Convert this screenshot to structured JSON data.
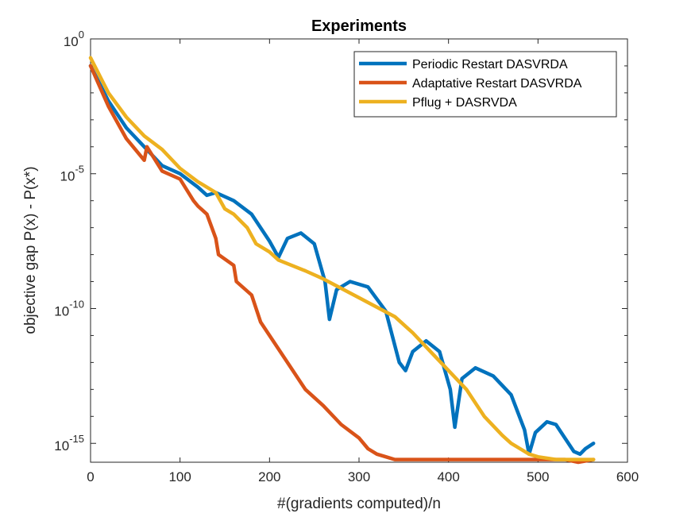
{
  "chart_data": {
    "type": "line",
    "title": "Experiments",
    "xlabel": "#(gradients computed)/n",
    "ylabel": "objective gap P(x) - P(x*)",
    "xlim": [
      0,
      600
    ],
    "ylim_exponent": [
      -15.7,
      0
    ],
    "yscale": "log",
    "x_ticks": [
      "0",
      "100",
      "200",
      "300",
      "400",
      "500",
      "600"
    ],
    "x_tick_values": [
      0,
      100,
      200,
      300,
      400,
      500,
      600
    ],
    "y_ticks": [
      {
        "value": 0,
        "base": "10",
        "exp": "0"
      },
      {
        "value": -5,
        "base": "10",
        "exp": "-5"
      },
      {
        "value": -10,
        "base": "10",
        "exp": "-10"
      },
      {
        "value": -15,
        "base": "10",
        "exp": "-15"
      }
    ],
    "legend_position": "top-right",
    "grid": false,
    "series": [
      {
        "name": "Periodic Restart DASVRDA",
        "color": "#0072BD",
        "x": [
          0,
          20,
          40,
          60,
          80,
          100,
          120,
          130,
          140,
          160,
          180,
          200,
          210,
          220,
          235,
          250,
          262,
          267,
          275,
          290,
          310,
          330,
          345,
          352,
          360,
          375,
          390,
          402,
          407,
          415,
          430,
          450,
          470,
          485,
          490,
          497,
          510,
          520,
          530,
          540,
          547,
          553,
          562
        ],
        "y_log10": [
          -1.0,
          -2.3,
          -3.3,
          -4.0,
          -4.7,
          -5.0,
          -5.5,
          -5.8,
          -5.7,
          -6.0,
          -6.5,
          -7.5,
          -8.1,
          -7.4,
          -7.2,
          -7.6,
          -9.0,
          -10.4,
          -9.3,
          -9.0,
          -9.2,
          -10.1,
          -12.0,
          -12.3,
          -11.6,
          -11.2,
          -11.6,
          -13.0,
          -14.4,
          -12.6,
          -12.2,
          -12.5,
          -13.2,
          -14.5,
          -15.4,
          -14.6,
          -14.2,
          -14.3,
          -14.8,
          -15.3,
          -15.4,
          -15.2,
          -15.0
        ]
      },
      {
        "name": "Adaptative Restart DASVRDA",
        "color": "#D95319",
        "x": [
          0,
          20,
          40,
          60,
          63,
          80,
          100,
          115,
          120,
          130,
          140,
          143,
          160,
          163,
          180,
          190,
          200,
          220,
          240,
          260,
          280,
          300,
          310,
          320,
          330,
          340,
          360,
          400,
          450,
          500,
          530,
          545,
          562
        ],
        "y_log10": [
          -1.0,
          -2.5,
          -3.7,
          -4.5,
          -4.0,
          -4.9,
          -5.2,
          -6.0,
          -6.2,
          -6.5,
          -7.4,
          -8.0,
          -8.4,
          -9.0,
          -9.5,
          -10.5,
          -11.0,
          -12.0,
          -13.0,
          -13.6,
          -14.3,
          -14.8,
          -15.2,
          -15.4,
          -15.5,
          -15.6,
          -15.6,
          -15.6,
          -15.6,
          -15.6,
          -15.6,
          -15.7,
          -15.6
        ]
      },
      {
        "name": "Pflug + DASRVDA",
        "color": "#EDB120",
        "x": [
          0,
          20,
          40,
          60,
          80,
          100,
          120,
          140,
          150,
          160,
          175,
          180,
          185,
          200,
          210,
          240,
          260,
          300,
          340,
          360,
          380,
          400,
          420,
          440,
          460,
          470,
          480,
          490,
          500,
          520,
          540,
          562
        ],
        "y_log10": [
          -0.7,
          -2.0,
          -2.9,
          -3.6,
          -4.1,
          -4.8,
          -5.3,
          -5.7,
          -6.3,
          -6.5,
          -7.0,
          -7.3,
          -7.6,
          -7.9,
          -8.2,
          -8.6,
          -8.9,
          -9.6,
          -10.3,
          -10.9,
          -11.6,
          -12.3,
          -13.0,
          -14.0,
          -14.7,
          -15.0,
          -15.2,
          -15.4,
          -15.5,
          -15.6,
          -15.6,
          -15.6
        ]
      }
    ]
  }
}
